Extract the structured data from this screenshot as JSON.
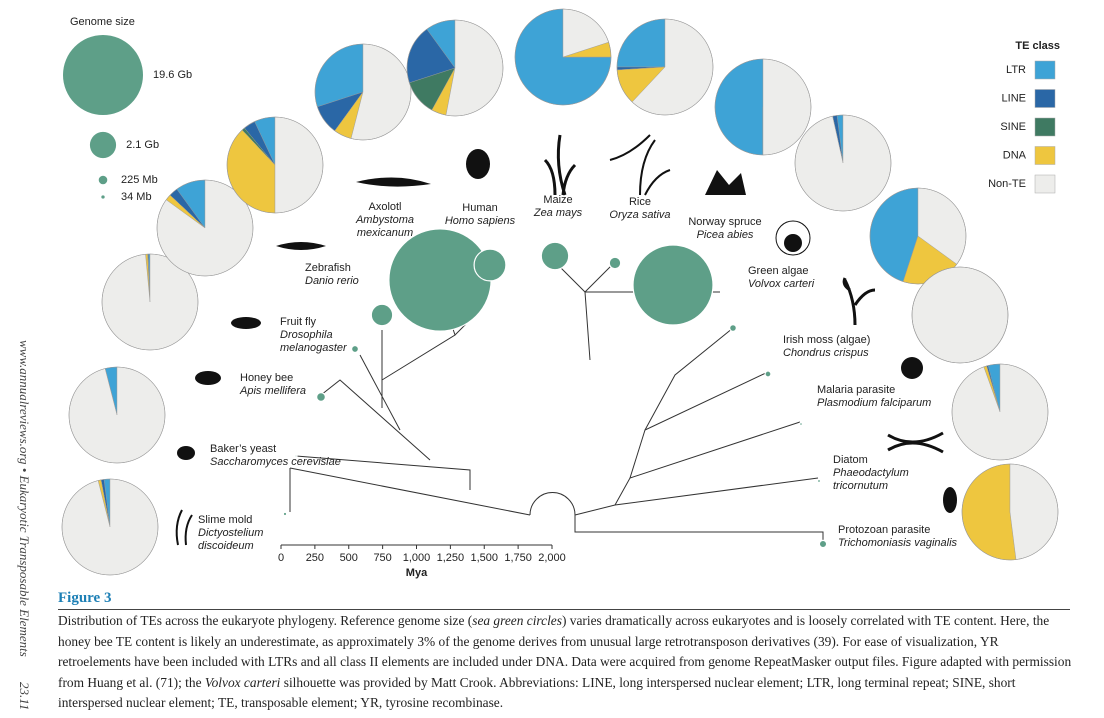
{
  "sidebar": {
    "journal": "www.annualreviews.org • Eukaryotic Transposable Elements",
    "page": "23.11"
  },
  "chart_data": {
    "type": "phylogeny",
    "size_legend": {
      "title": "Genome size",
      "items": [
        {
          "label": "19.6 Gb",
          "value": 19600
        },
        {
          "label": "2.1 Gb",
          "value": 2100
        },
        {
          "label": "225 Mb",
          "value": 225
        },
        {
          "label": "34 Mb",
          "value": 34
        }
      ]
    },
    "te_legend": {
      "title": "TE class",
      "classes": [
        {
          "name": "LTR",
          "color": "#3ea3d6"
        },
        {
          "name": "LINE",
          "color": "#2a67a6"
        },
        {
          "name": "SINE",
          "color": "#3f7a62"
        },
        {
          "name": "DNA",
          "color": "#eec63f"
        },
        {
          "name": "Non-TE",
          "color": "#ededeb"
        }
      ]
    },
    "circle_color": "#5e9f88",
    "species": [
      {
        "common": "Slime mold",
        "latin": [
          "Dictyostelium",
          "discoideum"
        ],
        "genome_mb": 34,
        "te": [
          2,
          1,
          0,
          1,
          96
        ]
      },
      {
        "common": "Baker’s yeast",
        "latin": [
          "Saccharomyces cerevisiae"
        ],
        "genome_mb": 12,
        "te": [
          4,
          0,
          0,
          0,
          96
        ]
      },
      {
        "common": "Honey bee",
        "latin": [
          "Apis mellifera"
        ],
        "genome_mb": 236,
        "te": [
          0.5,
          0.3,
          0,
          0.7,
          98.5
        ]
      },
      {
        "common": "Fruit fly",
        "latin": [
          "Drosophila",
          "melanogaster"
        ],
        "genome_mb": 144,
        "te": [
          10,
          3,
          0,
          2,
          85
        ]
      },
      {
        "common": "Zebrafish",
        "latin": [
          "Danio rerio"
        ],
        "genome_mb": 1400,
        "te": [
          7,
          4,
          1,
          38,
          50
        ]
      },
      {
        "common": "Axolotl",
        "latin": [
          "Ambystoma",
          "mexicanum"
        ],
        "genome_mb": 32000,
        "te": [
          30,
          10,
          0,
          6,
          54
        ]
      },
      {
        "common": "Human",
        "latin": [
          "Homo sapiens"
        ],
        "genome_mb": 3100,
        "te": [
          10,
          20,
          12,
          5,
          53
        ]
      },
      {
        "common": "Maize",
        "latin": [
          "Zea mays"
        ],
        "genome_mb": 2300,
        "te": [
          75,
          0,
          0,
          5,
          20
        ]
      },
      {
        "common": "Rice",
        "latin": [
          "Oryza sativa"
        ],
        "genome_mb": 400,
        "te": [
          25,
          1,
          0,
          12,
          62
        ]
      },
      {
        "common": "Norway spruce",
        "latin": [
          "Picea abies"
        ],
        "genome_mb": 19600,
        "te": [
          50,
          0,
          0,
          0,
          50
        ]
      },
      {
        "common": "Green algae",
        "latin": [
          "Volvox carteri"
        ],
        "genome_mb": 138,
        "te": [
          2,
          1.5,
          0,
          0,
          96.5
        ]
      },
      {
        "common": "Irish moss (algae)",
        "latin": [
          "Chondrus crispus"
        ],
        "genome_mb": 105,
        "te": [
          45,
          0,
          0,
          20,
          35
        ]
      },
      {
        "common": "Malaria parasite",
        "latin": [
          "Plasmodium falciparum"
        ],
        "genome_mb": 23,
        "te": [
          0,
          0,
          0,
          0,
          100
        ]
      },
      {
        "common": "Diatom",
        "latin": [
          "Phaeodactylum",
          "tricornutum"
        ],
        "genome_mb": 27,
        "te": [
          4,
          0.5,
          0,
          1,
          94.5
        ]
      },
      {
        "common": "Protozoan parasite",
        "latin": [
          "Trichomoniasis vaginalis"
        ],
        "genome_mb": 160,
        "te": [
          0,
          0,
          0,
          52,
          48
        ]
      }
    ],
    "xlabel": "Mya",
    "xlim": [
      0,
      2000
    ],
    "xticks": [
      0,
      250,
      500,
      750,
      {
        "value": 1000,
        "label": "1,000"
      },
      {
        "value": 1250,
        "label": "1,250"
      },
      {
        "value": 1500,
        "label": "1,500"
      },
      {
        "value": 1750,
        "label": "1,750"
      },
      {
        "value": 2000,
        "label": "2,000"
      }
    ]
  },
  "figure": {
    "label": "Figure 3",
    "caption": [
      "Distribution of TEs across the eukaryote phylogeny. Reference genome size (",
      "sea green circles",
      ") varies dramatically across eukaryotes and is loosely correlated with TE content. Here, the honey bee TE content is likely an underestimate, as approximately 3% of the genome derives from unusual large retrotransposon derivatives (39). For ease of visualization, YR retroelements have been included with LTRs and all class II elements are included under DNA. Data were acquired from genome RepeatMasker output files. Figure adapted with permission from Huang et al. (71); the ",
      "Volvox carteri",
      " silhouette was provided by Matt Crook. Abbreviations: LINE, long interspersed nuclear element; LTR, long terminal repeat; SINE, short interspersed nuclear element; TE, transposable element; YR, tyrosine recombinase."
    ]
  }
}
